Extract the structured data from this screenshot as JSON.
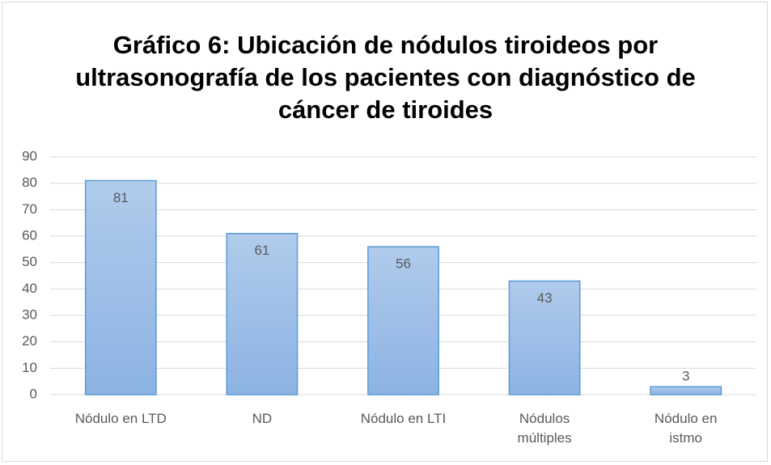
{
  "chart_data": {
    "type": "bar",
    "title": "Gráfico 6: Ubicación de nódulos tiroideos por ultrasonografía de los pacientes con diagnóstico de cáncer de tiroides",
    "categories": [
      "Nódulo en LTD",
      "ND",
      "Nódulo en LTI",
      "Nódulos múltiples",
      "Nódulo en istmo"
    ],
    "values": [
      81,
      61,
      56,
      43,
      3
    ],
    "color": "#5b9bd5",
    "ylim": [
      0,
      90
    ],
    "yticks": [
      0,
      10,
      20,
      30,
      40,
      50,
      60,
      70,
      80,
      90
    ],
    "grid": true
  }
}
